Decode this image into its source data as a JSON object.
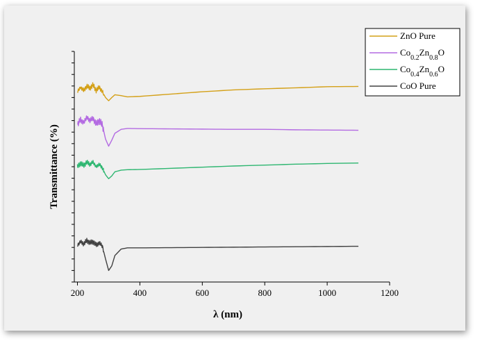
{
  "chart_data": {
    "type": "line",
    "title": "",
    "xlabel": "λ (nm)",
    "ylabel": "Transmittance (%)",
    "xlim": [
      190,
      1200
    ],
    "xticks": [
      "200",
      "400",
      "600",
      "800",
      "1000",
      "1200"
    ],
    "xtick_values": [
      200,
      400,
      600,
      800,
      1000,
      1200
    ],
    "ylim": [
      0,
      100
    ],
    "ytick_count": 21,
    "grid": false,
    "legend_position": "top-right",
    "legend": [
      {
        "name": "ZnO Pure",
        "base": "ZnO Pure",
        "parts": [
          {
            "t": "ZnO Pure"
          }
        ]
      },
      {
        "name": "Co0.2Zn0.8O",
        "base": "Co",
        "parts": [
          {
            "t": "Co"
          },
          {
            "t": "0.2",
            "sub": true
          },
          {
            "t": "Zn"
          },
          {
            "t": "0.8",
            "sub": true
          },
          {
            "t": "O"
          }
        ]
      },
      {
        "name": "Co0.4Zn0.6O",
        "base": "Co",
        "parts": [
          {
            "t": "Co"
          },
          {
            "t": "0.4",
            "sub": true
          },
          {
            "t": "Zn"
          },
          {
            "t": "0.6",
            "sub": true
          },
          {
            "t": "O"
          }
        ]
      },
      {
        "name": "CoO Pure",
        "base": "CoO Pure",
        "parts": [
          {
            "t": "CoO Pure"
          }
        ]
      }
    ],
    "series": [
      {
        "name": "ZnO Pure",
        "color": "#d4a017",
        "x": [
          200,
          210,
          220,
          230,
          240,
          250,
          260,
          270,
          280,
          290,
          300,
          310,
          320,
          340,
          360,
          400,
          500,
          600,
          700,
          800,
          900,
          1000,
          1100
        ],
        "y": [
          82.5,
          84.5,
          83.0,
          85.0,
          84.0,
          85.5,
          83.0,
          84.5,
          82.5,
          80.0,
          78.6,
          80.0,
          81.2,
          80.8,
          80.3,
          80.5,
          81.5,
          82.5,
          83.3,
          83.8,
          84.2,
          84.7,
          84.8
        ]
      },
      {
        "name": "Co0.2Zn0.8O",
        "color": "#b36ae2",
        "x": [
          200,
          210,
          220,
          230,
          240,
          250,
          260,
          270,
          280,
          290,
          300,
          310,
          320,
          340,
          360,
          400,
          500,
          600,
          700,
          800,
          900,
          1000,
          1100
        ],
        "y": [
          68.0,
          70.5,
          69.0,
          71.5,
          70.0,
          71.0,
          68.5,
          70.0,
          68.0,
          62.0,
          58.9,
          61.5,
          64.5,
          66.2,
          66.6,
          66.5,
          66.4,
          66.3,
          66.2,
          66.2,
          66.0,
          65.9,
          65.8
        ]
      },
      {
        "name": "Co0.4Zn0.6O",
        "color": "#2db670",
        "x": [
          200,
          210,
          220,
          230,
          240,
          250,
          260,
          270,
          280,
          290,
          300,
          310,
          320,
          340,
          360,
          400,
          500,
          600,
          700,
          800,
          900,
          1000,
          1100
        ],
        "y": [
          50.0,
          51.5,
          50.5,
          52.0,
          51.0,
          52.0,
          50.0,
          51.0,
          49.5,
          46.5,
          44.8,
          46.0,
          47.8,
          48.5,
          48.7,
          48.8,
          49.3,
          49.8,
          50.3,
          50.7,
          51.1,
          51.4,
          51.6
        ]
      },
      {
        "name": "CoO Pure",
        "color": "#404040",
        "x": [
          200,
          210,
          220,
          230,
          240,
          250,
          260,
          270,
          280,
          290,
          300,
          310,
          320,
          340,
          360,
          400,
          500,
          600,
          700,
          800,
          900,
          1000,
          1100
        ],
        "y": [
          16.0,
          17.5,
          16.5,
          18.0,
          17.0,
          17.5,
          16.0,
          17.0,
          15.5,
          10.0,
          5.0,
          7.0,
          11.5,
          14.3,
          14.8,
          14.8,
          14.9,
          15.0,
          15.1,
          15.2,
          15.3,
          15.4,
          15.5
        ]
      }
    ]
  }
}
